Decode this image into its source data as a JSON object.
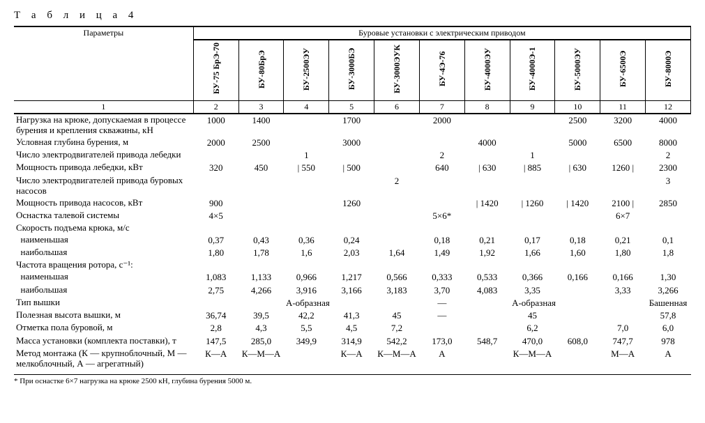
{
  "title": "Т а б л и ц а 4",
  "superheader": "Буровые установки с электрическим приводом",
  "param_header": "Параметры",
  "columns": [
    "БУ-75 БрЭ-70",
    "БУ-80БрЭ",
    "БУ-2500ЭУ",
    "БУ-3000БЭ",
    "БУ-3000ЭУК",
    "БУ-4Э-76",
    "БУ-4000ЭУ",
    "БУ-4000Э-1",
    "БУ-5000ЭУ",
    "БУ-6500Э",
    "БУ-8000Э"
  ],
  "col_nums": [
    "1",
    "2",
    "3",
    "4",
    "5",
    "6",
    "7",
    "8",
    "9",
    "10",
    "11",
    "12"
  ],
  "rows": [
    {
      "label": "Нагрузка на крюке, допускае­мая в процессе бурения и креп­ления скважины, кН",
      "cells": [
        "1000",
        "1400",
        "",
        "1700",
        "",
        "2000",
        "",
        "",
        "2500",
        "3200",
        "4000"
      ]
    },
    {
      "label": "Условная глубина бурения, м",
      "cells": [
        "2000",
        "2500",
        "",
        "3000",
        "",
        "",
        "4000",
        "",
        "5000",
        "6500",
        "8000"
      ]
    },
    {
      "label": "Число электродвигателей при­вода лебедки",
      "cells": [
        "",
        "",
        "1",
        "",
        "",
        "2",
        "",
        "1",
        "",
        "",
        "2"
      ]
    },
    {
      "label": "Мощность привода лебедки, кВт",
      "cells": [
        "320",
        "450",
        "|   550",
        "|   500",
        "",
        "640",
        "|   630",
        "|   885",
        "|   630",
        "1260 |",
        "2300"
      ]
    },
    {
      "label": "Число электродвигателей при­вода буровых насосов",
      "cells": [
        "",
        "",
        "",
        "",
        "2",
        "",
        "",
        "",
        "",
        "",
        "3"
      ]
    },
    {
      "label": "Мощность привода насосов, кВт",
      "cells": [
        "900",
        "",
        "",
        "1260",
        "",
        "",
        "|  1420",
        "|  1260",
        "|  1420",
        "2100 |",
        "2850"
      ]
    },
    {
      "label": "Оснастка талевой системы",
      "cells": [
        "4×5",
        "",
        "",
        "",
        "",
        "5×6*",
        "",
        "",
        "",
        "6×7",
        ""
      ]
    },
    {
      "label": "Скорость подъема крюка, м/с",
      "cells": [
        "",
        "",
        "",
        "",
        "",
        "",
        "",
        "",
        "",
        "",
        ""
      ]
    },
    {
      "label": "  наименьшая",
      "cells": [
        "0,37",
        "0,43",
        "0,36",
        "0,24",
        "",
        "0,18",
        "0,21",
        "0,17",
        "0,18",
        "0,21",
        "0,1"
      ]
    },
    {
      "label": "  наибольшая",
      "cells": [
        "1,80",
        "1,78",
        "1,6",
        "2,03",
        "1,64",
        "1,49",
        "1,92",
        "1,66",
        "1,60",
        "1,80",
        "1,8"
      ]
    },
    {
      "label": "Частота вращения ротора, с⁻¹:",
      "cells": [
        "",
        "",
        "",
        "",
        "",
        "",
        "",
        "",
        "",
        "",
        ""
      ]
    },
    {
      "label": "  наименьшая",
      "cells": [
        "1,083",
        "1,133",
        "0,966",
        "1,217",
        "0,566",
        "0,333",
        "0,533",
        "0,366",
        "0,166",
        "0,166",
        "1,30"
      ]
    },
    {
      "label": "  наибольшая",
      "cells": [
        "2,75",
        "4,266",
        "3,916",
        "3,166",
        "3,183",
        "3,70",
        "4,083",
        "3,35",
        "",
        "3,33",
        "3,266"
      ]
    },
    {
      "label": "Тип вышки",
      "cells": [
        "",
        "",
        "А-образная",
        "",
        "",
        "—",
        "",
        "А-образная",
        "",
        "",
        "Башенная"
      ]
    },
    {
      "label": "Полезная высота вышки, м",
      "cells": [
        "36,74",
        "39,5",
        "42,2",
        "41,3",
        "45",
        "—",
        "",
        "45",
        "",
        "",
        "57,8"
      ]
    },
    {
      "label": "Отметка пола буровой, м",
      "cells": [
        "2,8",
        "4,3",
        "5,5",
        "4,5",
        "7,2",
        "",
        "",
        "6,2",
        "",
        "7,0",
        "6,0"
      ]
    },
    {
      "label": "Масса установки (комплекта поставки), т",
      "cells": [
        "147,5",
        "285,0",
        "349,9",
        "314,9",
        "542,2",
        "173,0",
        "548,7",
        "470,0",
        "608,0",
        "747,7",
        "978"
      ]
    },
    {
      "label": "Метод монтажа (К — крупно­блочный, М — мелкоблочный, А — агрегатный)",
      "cells": [
        "К—А",
        "К—М—А",
        "",
        "К—А",
        "К—М—А",
        "А",
        "",
        "К—М—А",
        "",
        "М—А",
        "А"
      ]
    }
  ],
  "footnote": "* При оснастке 6×7 нагрузка на крюке 2500 кН, глубина бурения 5000 м."
}
